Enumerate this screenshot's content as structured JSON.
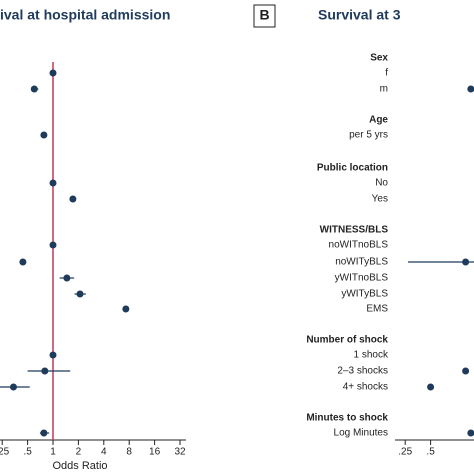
{
  "chart_data": [
    {
      "type": "forest",
      "title": "ival at hospital admission",
      "x_label": "Odds Ratio",
      "log_x": true,
      "refline": 1,
      "refline_color": "#c4385a",
      "color": "#1f3b5c",
      "values": [
        null,
        1,
        0.6,
        null,
        0.78,
        null,
        1,
        1.72,
        null,
        1,
        0.44,
        1.46,
        2.09,
        7.3,
        null,
        1,
        0.8,
        0.34,
        null,
        0.78
      ],
      "ci_low": [
        null,
        null,
        0.55,
        null,
        null,
        null,
        null,
        null,
        null,
        null,
        0.4,
        1.2,
        1.8,
        null,
        null,
        null,
        0.5,
        0.2,
        null,
        0.7
      ],
      "ci_high": [
        null,
        null,
        0.67,
        null,
        null,
        null,
        null,
        null,
        null,
        null,
        0.48,
        1.78,
        2.45,
        null,
        null,
        null,
        1.6,
        0.53,
        null,
        0.9
      ],
      "xlim": [
        0.25,
        32
      ],
      "xticks": [
        {
          "value": 0.25,
          "label": ".25"
        },
        {
          "value": 0.5,
          "label": ".5"
        },
        1,
        2,
        4,
        8,
        16,
        32
      ]
    },
    {
      "type": "forest",
      "panel": "B",
      "title": "Survival at 3",
      "log_x": true,
      "color": "#1f3b5c",
      "categories": [
        "Sex",
        "f",
        "m",
        "Age",
        "per 5 yrs",
        "Public location",
        "No",
        "Yes",
        "WITNESS/BLS",
        "noWITnoBLS",
        "noWITyBLS",
        "yWITnoBLS",
        "yWITyBLS",
        "EMS",
        "Number of shock",
        "1 shock",
        "2–3 shocks",
        "4+ shocks",
        "Minutes to shock",
        "Log Minutes"
      ],
      "values": [
        null,
        null,
        1.5,
        null,
        null,
        null,
        null,
        null,
        null,
        null,
        1.3,
        null,
        null,
        null,
        null,
        null,
        1.3,
        0.5,
        null,
        1.5
      ],
      "ci_low": [
        null,
        null,
        null,
        null,
        null,
        null,
        null,
        null,
        null,
        null,
        0.27,
        null,
        null,
        null,
        null,
        null,
        null,
        null,
        null,
        null
      ],
      "ci_high": [
        null,
        null,
        null,
        null,
        null,
        null,
        null,
        null,
        null,
        null,
        2.0,
        null,
        null,
        null,
        null,
        null,
        null,
        null,
        null,
        null
      ],
      "xlim": [
        0.25,
        2
      ],
      "xticks": [
        {
          "value": 0.25,
          "label": ".25"
        },
        {
          "value": 0.5,
          "label": ".5"
        }
      ]
    }
  ]
}
